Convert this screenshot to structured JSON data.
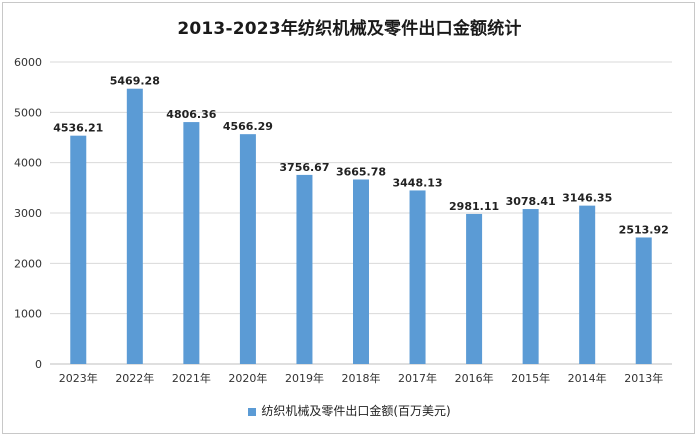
{
  "chart_data": {
    "type": "bar",
    "title": "2013-2023年纺织机械及零件出口金额统计",
    "categories": [
      "2023年",
      "2022年",
      "2021年",
      "2020年",
      "2019年",
      "2018年",
      "2017年",
      "2016年",
      "2015年",
      "2014年",
      "2013年"
    ],
    "series": [
      {
        "name": "纺织机械及零件出口金额(百万美元)",
        "values": [
          4536.21,
          5469.28,
          4806.36,
          4566.29,
          3756.67,
          3665.78,
          3448.13,
          2981.11,
          3078.41,
          3146.35,
          2513.92
        ],
        "labels": [
          "4536.21",
          "5469.28",
          "4806.36",
          "4566.29",
          "3756.67",
          "3665.78",
          "3448.13",
          "2981.11",
          "3078.41",
          "3146.35",
          "2513.92"
        ]
      }
    ],
    "yticks": [
      "0",
      "1000",
      "2000",
      "3000",
      "4000",
      "5000",
      "6000"
    ],
    "ylim": [
      0,
      6000
    ],
    "grid": true,
    "legend_position": "bottom",
    "bar_color": "#5b9bd5"
  }
}
